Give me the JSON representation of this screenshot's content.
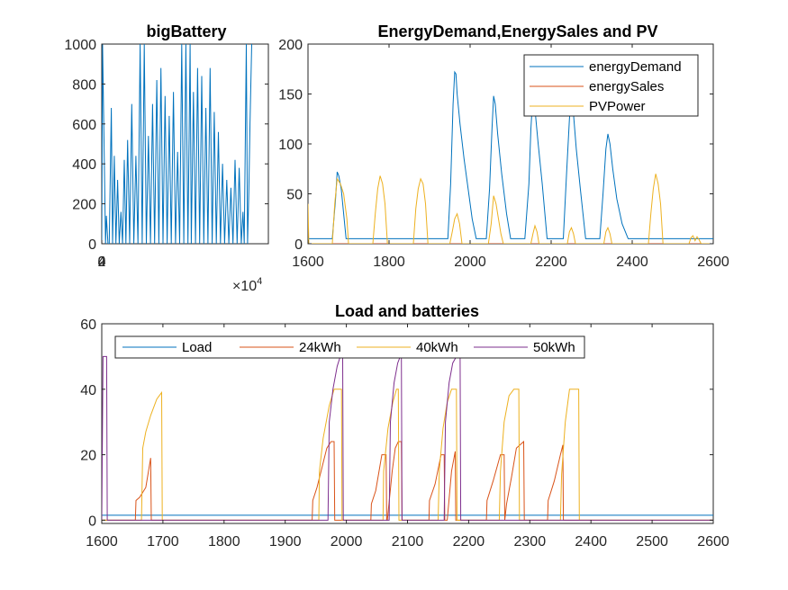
{
  "chart_data": [
    {
      "type": "line",
      "title": "bigBattery",
      "xlim": [
        0,
        40000
      ],
      "ylim": [
        0,
        1000
      ],
      "xticks": [
        0,
        2,
        4
      ],
      "x_tick_labels": [
        "0",
        "2",
        "4"
      ],
      "x_exponent_label": "×10",
      "x_exponent_power": "4",
      "yticks": [
        0,
        200,
        400,
        600,
        800,
        1000
      ],
      "y_tick_labels": [
        "0",
        "200",
        "400",
        "600",
        "800",
        "1000"
      ],
      "grid": false,
      "series": [
        {
          "color": "#0072BD",
          "x": [
            0,
            200,
            900,
            1100,
            1500,
            1800,
            2300,
            2600,
            3000,
            3400,
            3800,
            4200,
            4600,
            5000,
            5400,
            5800,
            6200,
            6700,
            7200,
            7700,
            8200,
            8700,
            9200,
            9700,
            10200,
            10700,
            11200,
            11700,
            12200,
            12700,
            13200,
            13700,
            14200,
            14700,
            15200,
            15700,
            16200,
            16700,
            17200,
            17700,
            18200,
            18700,
            19200,
            19700,
            20200,
            20700,
            21200,
            21500,
            22000,
            22500,
            23000,
            23500,
            24000,
            24500,
            25000,
            25500,
            26000,
            26500,
            27000,
            27500,
            28000,
            28500,
            29000,
            29500,
            30000,
            30500,
            31000,
            31500,
            32000,
            32500,
            33000,
            33500,
            33900,
            34200,
            34700,
            35000,
            35300,
            35600,
            36000
          ],
          "y": [
            0,
            1000,
            0,
            140,
            0,
            0,
            680,
            0,
            440,
            0,
            320,
            0,
            160,
            0,
            420,
            0,
            520,
            0,
            700,
            0,
            440,
            0,
            1000,
            0,
            1000,
            0,
            540,
            0,
            700,
            0,
            820,
            0,
            880,
            0,
            740,
            0,
            640,
            0,
            760,
            0,
            460,
            0,
            1000,
            0,
            1000,
            0,
            1000,
            0,
            760,
            0,
            880,
            0,
            840,
            0,
            680,
            0,
            880,
            0,
            660,
            0,
            560,
            0,
            400,
            0,
            320,
            0,
            280,
            0,
            420,
            0,
            380,
            0,
            160,
            0,
            1000,
            0,
            260,
            600,
            1000
          ]
        }
      ]
    },
    {
      "type": "line",
      "title": "EnergyDemand,EnergySales and PV",
      "xlim": [
        1600,
        2600
      ],
      "ylim": [
        0,
        200
      ],
      "xticks": [
        1600,
        1800,
        2000,
        2200,
        2400,
        2600
      ],
      "yticks": [
        0,
        50,
        100,
        150,
        200
      ],
      "grid": false,
      "legend_position": "top-right",
      "series": [
        {
          "name": "energyDemand",
          "color": "#0072BD",
          "x": [
            1600,
            1660,
            1668,
            1672,
            1676,
            1682,
            1688,
            1694,
            1700,
            1945,
            1952,
            1958,
            1962,
            1965,
            1968,
            1975,
            1985,
            1995,
            2005,
            2015,
            2040,
            2048,
            2054,
            2058,
            2062,
            2068,
            2078,
            2090,
            2100,
            2135,
            2145,
            2150,
            2155,
            2160,
            2168,
            2178,
            2190,
            2230,
            2238,
            2245,
            2250,
            2255,
            2262,
            2272,
            2285,
            2320,
            2328,
            2335,
            2340,
            2345,
            2352,
            2362,
            2375,
            2390,
            2600
          ],
          "y": [
            5,
            5,
            45,
            72,
            68,
            55,
            30,
            5,
            5,
            5,
            60,
            140,
            172,
            170,
            150,
            120,
            85,
            55,
            25,
            5,
            5,
            55,
            115,
            148,
            140,
            110,
            70,
            30,
            5,
            5,
            60,
            115,
            150,
            135,
            100,
            60,
            5,
            5,
            70,
            125,
            150,
            130,
            95,
            55,
            5,
            5,
            50,
            95,
            110,
            100,
            75,
            45,
            20,
            5,
            5
          ]
        },
        {
          "name": "energySales",
          "color": "#D95319",
          "x": [
            1600,
            2600
          ],
          "y": [
            0,
            0
          ]
        },
        {
          "name": "PVPower",
          "color": "#EDB120",
          "x": [
            1600,
            1602,
            1608,
            1660,
            1666,
            1672,
            1680,
            1688,
            1696,
            1700,
            1760,
            1766,
            1772,
            1778,
            1784,
            1790,
            1796,
            1860,
            1866,
            1872,
            1878,
            1884,
            1890,
            1896,
            1950,
            1956,
            1962,
            1968,
            1974,
            1980,
            2045,
            2052,
            2058,
            2064,
            2070,
            2076,
            2082,
            2150,
            2155,
            2160,
            2165,
            2170,
            2240,
            2245,
            2250,
            2255,
            2260,
            2330,
            2335,
            2340,
            2345,
            2350,
            2440,
            2446,
            2452,
            2458,
            2464,
            2470,
            2476,
            2540,
            2545,
            2550,
            2555,
            2560,
            2565,
            2570,
            2600
          ],
          "y": [
            40,
            0,
            0,
            0,
            40,
            65,
            60,
            50,
            25,
            0,
            0,
            30,
            55,
            68,
            60,
            40,
            0,
            0,
            35,
            55,
            65,
            60,
            40,
            0,
            0,
            12,
            25,
            30,
            20,
            0,
            0,
            20,
            48,
            40,
            25,
            10,
            0,
            0,
            10,
            18,
            12,
            0,
            0,
            12,
            16,
            10,
            0,
            0,
            12,
            16,
            10,
            0,
            0,
            30,
            55,
            70,
            60,
            40,
            0,
            0,
            6,
            8,
            3,
            7,
            4,
            0,
            0
          ]
        }
      ]
    },
    {
      "type": "line",
      "title": "Load and batteries",
      "xlim": [
        1600,
        2600
      ],
      "ylim": [
        -1,
        60
      ],
      "xticks": [
        1600,
        1700,
        1800,
        1900,
        2000,
        2100,
        2200,
        2300,
        2400,
        2500,
        2600
      ],
      "yticks": [
        0,
        20,
        40,
        60
      ],
      "grid": false,
      "legend_position": "top-left",
      "series": [
        {
          "name": "Load",
          "color": "#0072BD",
          "x": [
            1600,
            2600
          ],
          "y": [
            1.5,
            1.5
          ]
        },
        {
          "name": "24kWh",
          "color": "#D95319",
          "x": [
            1600,
            1655,
            1656,
            1662,
            1672,
            1680,
            1681,
            1944,
            1945,
            1952,
            1968,
            1975,
            1980,
            1981,
            2040,
            2041,
            2048,
            2058,
            2065,
            2066,
            2067,
            2075,
            2080,
            2085,
            2090,
            2091,
            2135,
            2136,
            2145,
            2155,
            2160,
            2161,
            2165,
            2172,
            2178,
            2179,
            2229,
            2230,
            2240,
            2252,
            2258,
            2259,
            2262,
            2270,
            2278,
            2290,
            2291,
            2329,
            2330,
            2340,
            2350,
            2354,
            2355,
            2600
          ],
          "y": [
            0,
            0,
            6,
            7,
            10,
            19,
            0,
            0,
            6,
            10,
            22,
            24,
            24,
            0,
            0,
            5,
            9,
            20,
            20,
            0,
            0,
            15,
            22,
            24,
            24,
            0,
            0,
            6,
            11,
            20,
            20,
            0,
            0,
            15,
            21,
            0,
            0,
            6,
            12,
            20,
            20,
            0,
            5,
            13,
            22,
            24,
            0,
            0,
            6,
            12,
            20,
            23,
            0,
            0
          ]
        },
        {
          "name": "40kWh",
          "color": "#EDB120",
          "x": [
            1600,
            1665,
            1667,
            1672,
            1680,
            1690,
            1698,
            1699,
            1955,
            1956,
            1962,
            1972,
            1980,
            1992,
            1993,
            2060,
            2061,
            2068,
            2076,
            2082,
            2085,
            2086,
            2150,
            2152,
            2158,
            2165,
            2172,
            2180,
            2181,
            2250,
            2252,
            2258,
            2266,
            2274,
            2282,
            2283,
            2350,
            2352,
            2358,
            2365,
            2372,
            2380,
            2381,
            2600
          ],
          "y": [
            0,
            0,
            22,
            27,
            32,
            37,
            39,
            0,
            0,
            15,
            25,
            35,
            40,
            40,
            0,
            0,
            15,
            28,
            36,
            40,
            40,
            0,
            0,
            15,
            28,
            36,
            40,
            40,
            0,
            0,
            15,
            30,
            38,
            40,
            40,
            0,
            0,
            14,
            30,
            40,
            40,
            40,
            0,
            0
          ]
        },
        {
          "name": "50kWh",
          "color": "#7E2F8E",
          "x": [
            1600,
            1602,
            1608,
            1609,
            1970,
            1972,
            1978,
            1985,
            1990,
            1994,
            1995,
            2070,
            2072,
            2078,
            2084,
            2088,
            2090,
            2091,
            2160,
            2162,
            2168,
            2174,
            2180,
            2186,
            2187,
            2600
          ],
          "y": [
            0,
            50,
            50,
            0,
            0,
            30,
            40,
            47,
            50,
            50,
            0,
            0,
            30,
            42,
            48,
            50,
            50,
            0,
            0,
            30,
            42,
            48,
            50,
            50,
            0,
            0
          ]
        }
      ]
    }
  ]
}
